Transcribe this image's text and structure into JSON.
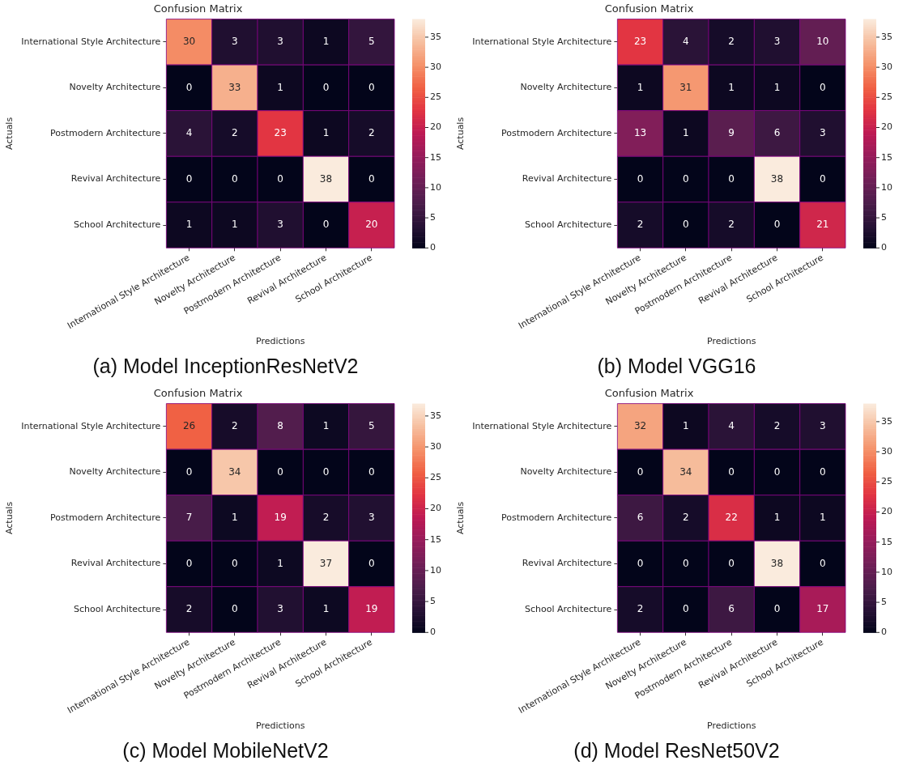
{
  "chart_data": [
    {
      "type": "heatmap",
      "title": "Confusion Matrix",
      "xlabel": "Predictions",
      "ylabel": "Actuals",
      "annotations": [
        "(a) Model InceptionResNetV2"
      ],
      "categories": [
        "International Style Architecture",
        "Novelty Architecture",
        "Postmodern Architecture",
        "Revival Architecture",
        "School Architecture"
      ],
      "y_categories": [
        "International Style Architecture",
        "Novelty Architecture",
        "Postmodern Architecture",
        "Revival Architecture",
        "School Architecture"
      ],
      "cells": [
        [
          30,
          3,
          3,
          1,
          5
        ],
        [
          0,
          33,
          1,
          0,
          0
        ],
        [
          4,
          2,
          23,
          1,
          2
        ],
        [
          0,
          0,
          0,
          38,
          0
        ],
        [
          1,
          1,
          3,
          0,
          20
        ]
      ],
      "data_labels": true,
      "clim": [
        0,
        38
      ],
      "cticks": [
        0,
        5,
        10,
        15,
        20,
        25,
        30,
        35
      ]
    },
    {
      "type": "heatmap",
      "title": "Confusion Matrix",
      "xlabel": "Predictions",
      "ylabel": "Actuals",
      "annotations": [
        "(b) Model VGG16"
      ],
      "categories": [
        "International Style Architecture",
        "Novelty Architecture",
        "Postmodern Architecture",
        "Revival Architecture",
        "School Architecture"
      ],
      "y_categories": [
        "International Style Architecture",
        "Novelty Architecture",
        "Postmodern Architecture",
        "Revival Architecture",
        "School Architecture"
      ],
      "cells": [
        [
          23,
          4,
          2,
          3,
          10
        ],
        [
          1,
          31,
          1,
          1,
          0
        ],
        [
          13,
          1,
          9,
          6,
          3
        ],
        [
          0,
          0,
          0,
          38,
          0
        ],
        [
          2,
          0,
          2,
          0,
          21
        ]
      ],
      "data_labels": true,
      "clim": [
        0,
        38
      ],
      "cticks": [
        0,
        5,
        10,
        15,
        20,
        25,
        30,
        35
      ]
    },
    {
      "type": "heatmap",
      "title": "Confusion Matrix",
      "xlabel": "Predictions",
      "ylabel": "Actuals",
      "annotations": [
        "(c) Model MobileNetV2"
      ],
      "categories": [
        "International Style Architecture",
        "Novelty Architecture",
        "Postmodern Architecture",
        "Revival Architecture",
        "School Architecture"
      ],
      "y_categories": [
        "International Style Architecture",
        "Novelty Architecture",
        "Postmodern Architecture",
        "Revival Architecture",
        "School Architecture"
      ],
      "cells": [
        [
          26,
          2,
          8,
          1,
          5
        ],
        [
          0,
          34,
          0,
          0,
          0
        ],
        [
          7,
          1,
          19,
          2,
          3
        ],
        [
          0,
          0,
          1,
          37,
          0
        ],
        [
          2,
          0,
          3,
          1,
          19
        ]
      ],
      "data_labels": true,
      "clim": [
        0,
        37
      ],
      "cticks": [
        0,
        5,
        10,
        15,
        20,
        25,
        30,
        35
      ]
    },
    {
      "type": "heatmap",
      "title": "Confusion Matrix",
      "xlabel": "Predictions",
      "ylabel": "Actuals",
      "annotations": [
        "(d) Model ResNet50V2"
      ],
      "categories": [
        "International Style Architecture",
        "Novelty Architecture",
        "Postmodern Architecture",
        "Revival Architecture",
        "School Architecture"
      ],
      "y_categories": [
        "International Style Architecture",
        "Novelty Architecture",
        "Postmodern Architecture",
        "Revival Architecture",
        "School Architecture"
      ],
      "cells": [
        [
          32,
          1,
          4,
          2,
          3
        ],
        [
          0,
          34,
          0,
          0,
          0
        ],
        [
          6,
          2,
          22,
          1,
          1
        ],
        [
          0,
          0,
          0,
          38,
          0
        ],
        [
          2,
          0,
          6,
          0,
          17
        ]
      ],
      "data_labels": true,
      "clim": [
        0,
        38
      ],
      "cticks": [
        0,
        5,
        10,
        15,
        20,
        25,
        30,
        35
      ]
    }
  ]
}
